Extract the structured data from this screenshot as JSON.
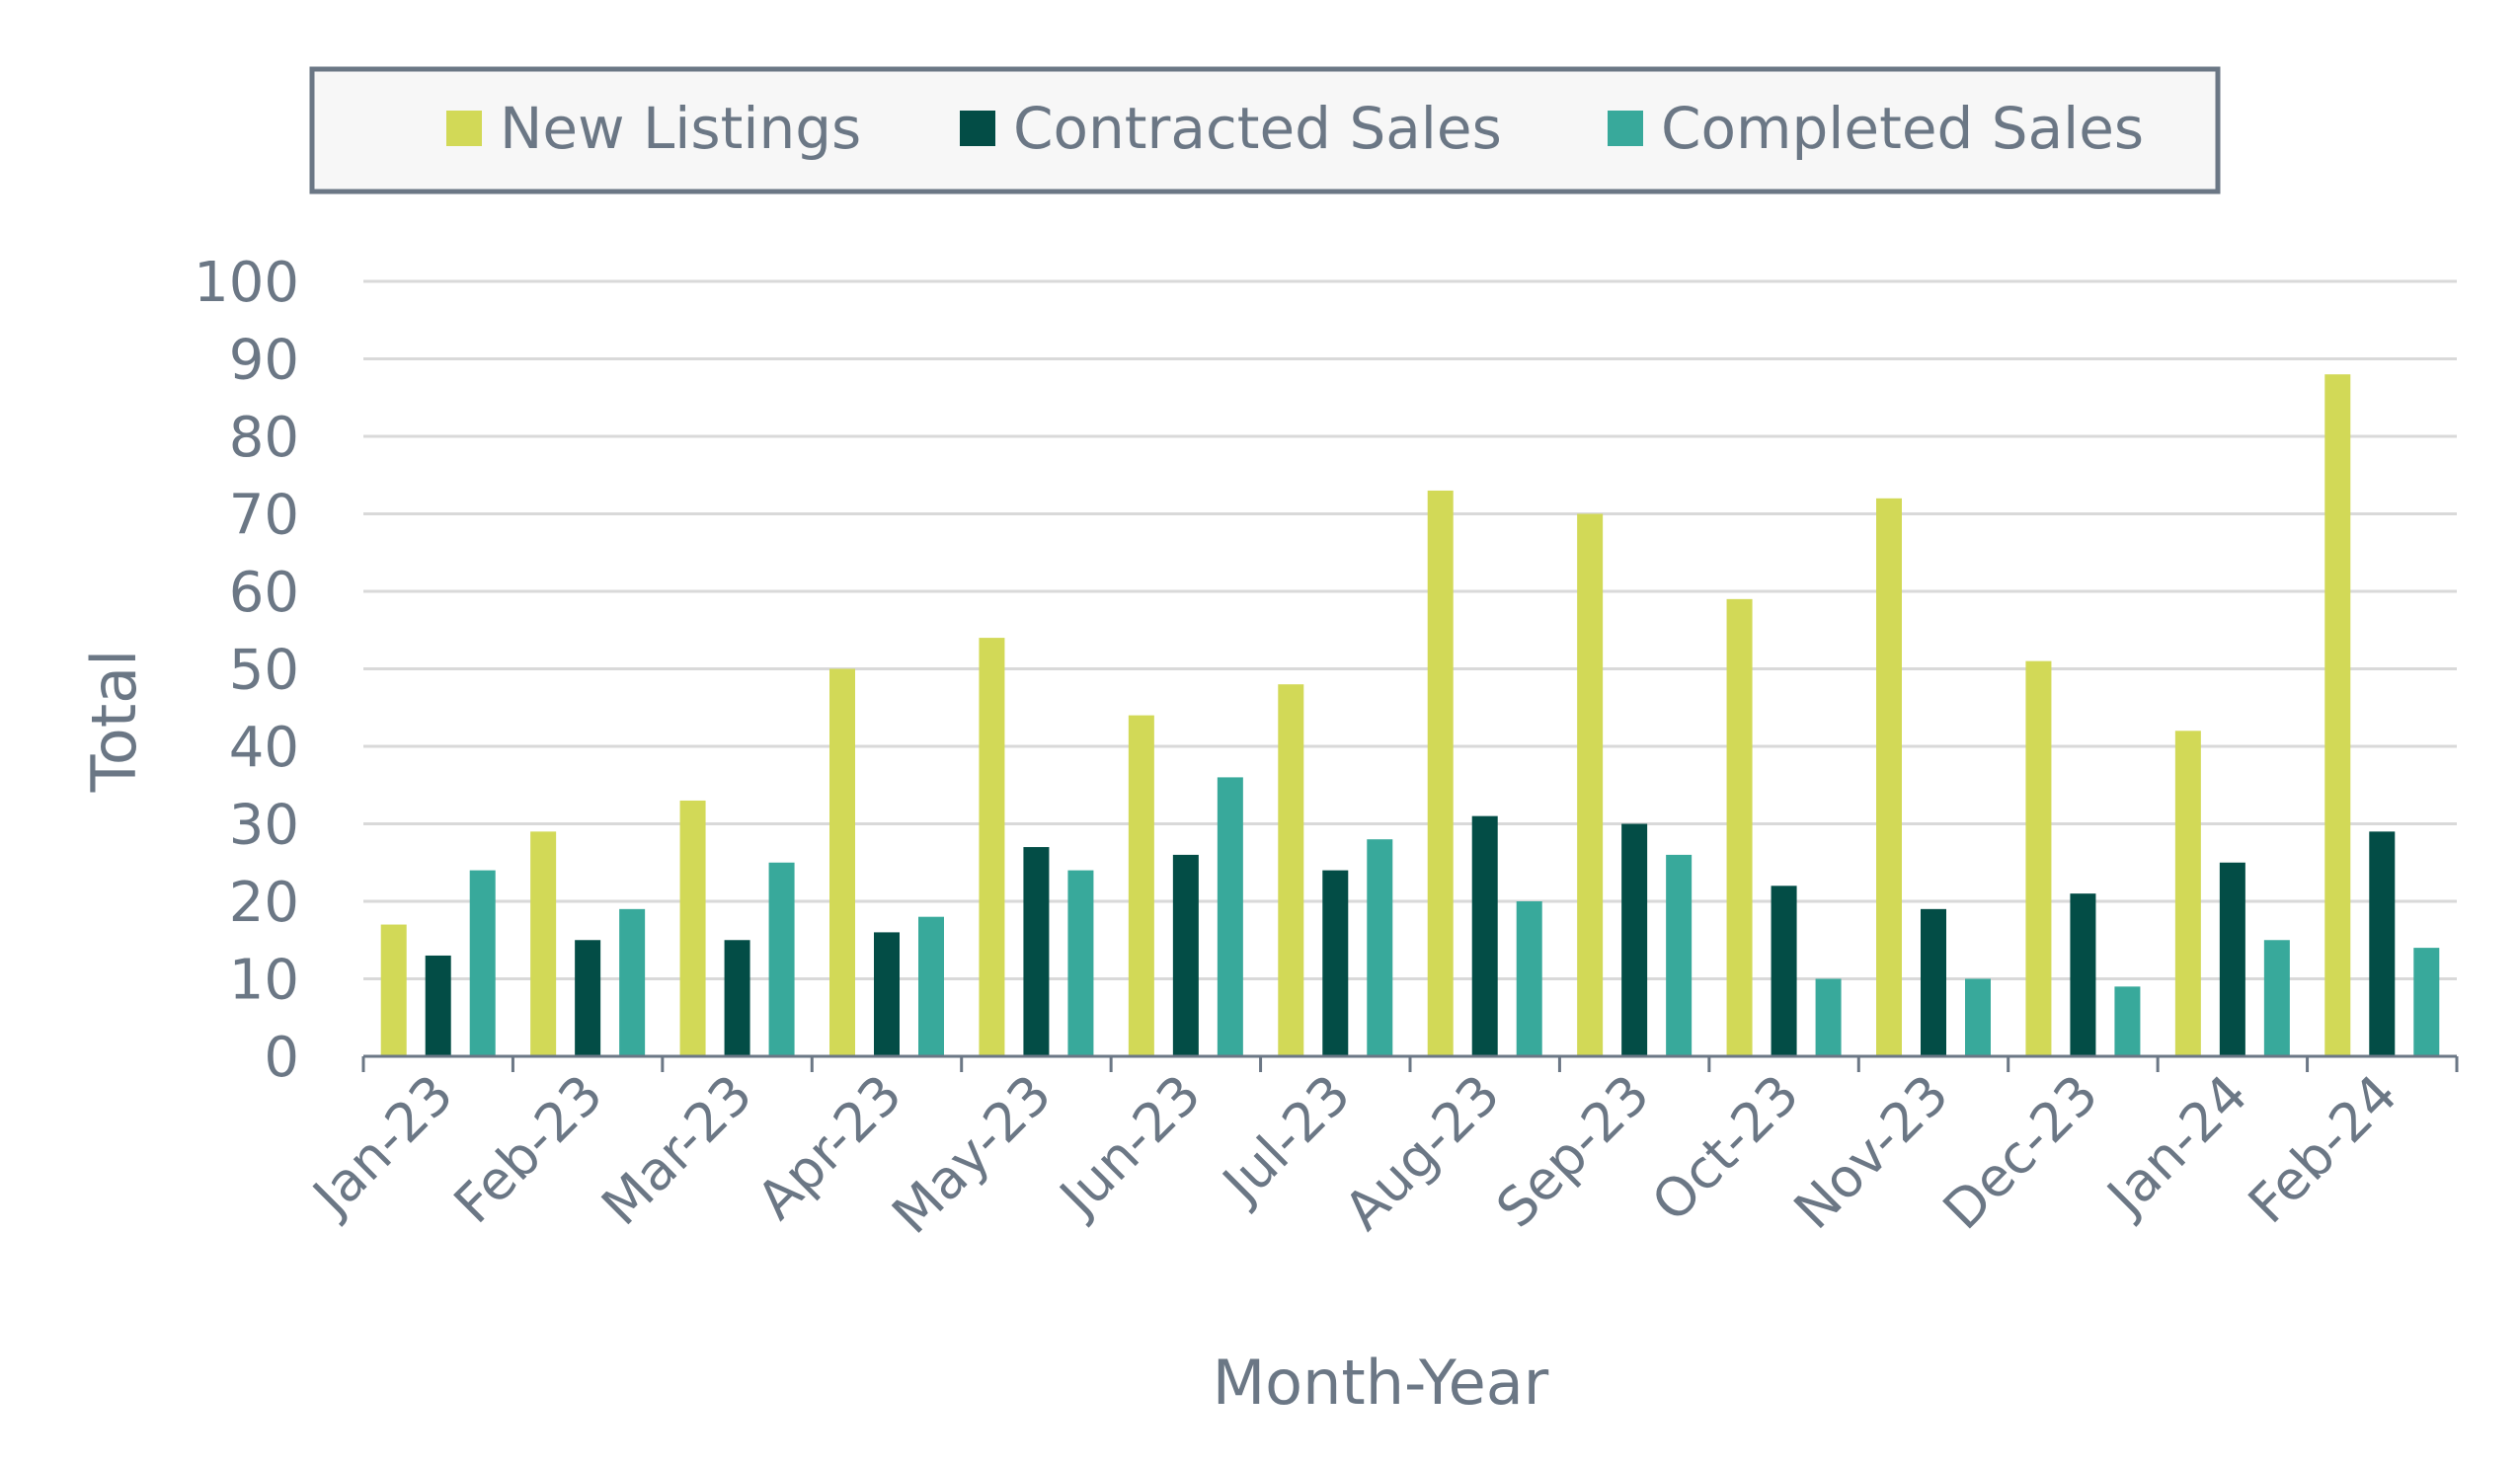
{
  "chart_data": {
    "type": "bar",
    "xlabel": "Month-Year",
    "ylabel": "Total",
    "ylim": [
      0,
      100
    ],
    "yticks": [
      0,
      10,
      20,
      30,
      40,
      50,
      60,
      70,
      80,
      90,
      100
    ],
    "grid": true,
    "legend_position": "top",
    "categories": [
      "Jan-23",
      "Feb-23",
      "Mar-23",
      "Apr-23",
      "May-23",
      "Jun-23",
      "Jul-23",
      "Aug-23",
      "Sep-23",
      "Oct-23",
      "Nov-23",
      "Dec-23",
      "Jan-24",
      "Feb-24"
    ],
    "series": [
      {
        "name": "New Listings",
        "color": "#d2d957",
        "values": [
          17,
          29,
          33,
          50,
          54,
          44,
          48,
          73,
          70,
          59,
          72,
          51,
          42,
          88
        ]
      },
      {
        "name": "Contracted Sales",
        "color": "#034d46",
        "values": [
          13,
          15,
          15,
          16,
          27,
          26,
          24,
          31,
          30,
          22,
          19,
          21,
          25,
          29
        ]
      },
      {
        "name": "Completed Sales",
        "color": "#38a99b",
        "values": [
          24,
          19,
          25,
          18,
          24,
          36,
          28,
          20,
          26,
          10,
          10,
          9,
          15,
          14
        ]
      }
    ]
  },
  "style": {
    "text_color": "#6b7785",
    "grid_color": "#d9d9d9",
    "axis_color": "#6b7785",
    "legend_border_color": "#6b7785",
    "legend_bg_color": "#f7f7f7"
  }
}
